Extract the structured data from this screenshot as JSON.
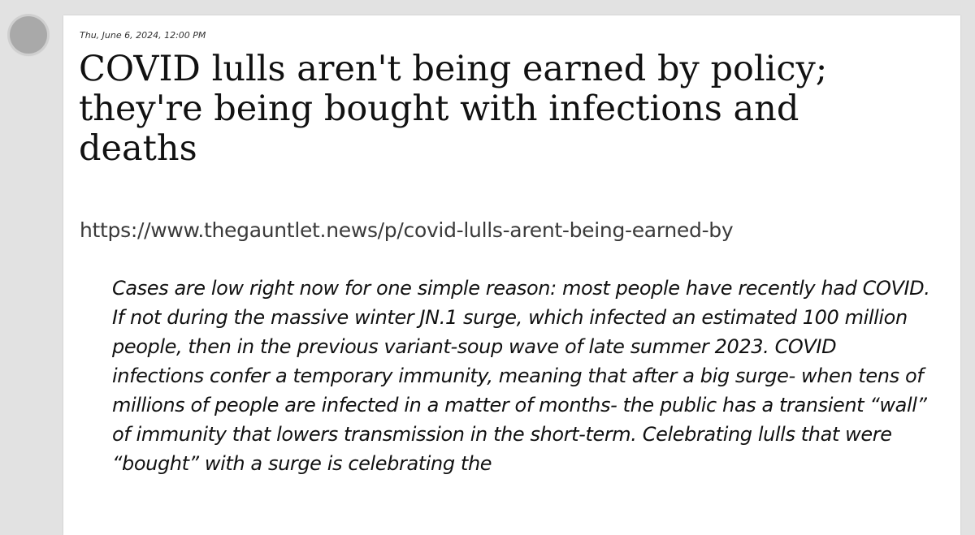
{
  "post": {
    "timestamp": "Thu, June 6, 2024, 12:00 PM",
    "title": "COVID lulls aren't being earned by policy; they're being bought with infections and deaths",
    "url": "https://www.thegauntlet.news/p/covid-lulls-arent-being-earned-by",
    "quote": "Cases are low right now for one simple reason: most people have recently had COVID. If not during the massive winter JN.1 surge, which infected an estimated 100 million people, then in the previous variant-soup wave of late summer 2023. COVID infections confer a temporary immunity, meaning that after a big surge- when tens of millions of people are infected in a matter of months- the public has a transient “wall” of immunity that lowers transmission in the short-term. Celebrating lulls that were “bought” with a surge is celebrating the"
  },
  "colors": {
    "background": "#e2e2e2",
    "card": "#ffffff",
    "avatar": "#a9a9a9"
  },
  "icons": {
    "avatar": "avatar-circle"
  }
}
